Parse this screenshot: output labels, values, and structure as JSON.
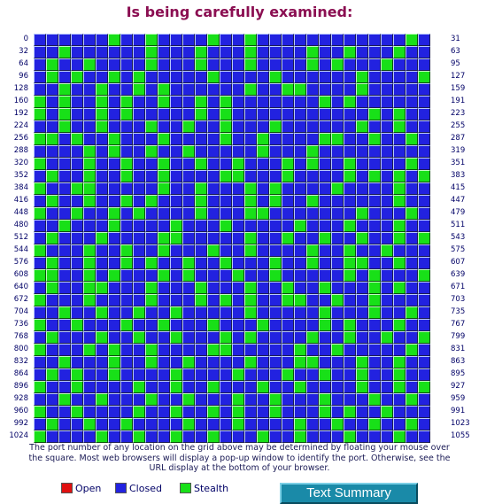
{
  "title": "Is being carefully examined:",
  "grid": {
    "columns": 32,
    "rows": 33,
    "row_labels_left": [
      "0",
      "32",
      "64",
      "96",
      "128",
      "160",
      "192",
      "224",
      "256",
      "288",
      "320",
      "352",
      "384",
      "416",
      "448",
      "480",
      "512",
      "544",
      "576",
      "608",
      "640",
      "672",
      "704",
      "736",
      "768",
      "800",
      "832",
      "864",
      "896",
      "928",
      "960",
      "992",
      "1024"
    ],
    "row_labels_right": [
      "31",
      "63",
      "95",
      "127",
      "159",
      "191",
      "223",
      "255",
      "287",
      "319",
      "351",
      "383",
      "415",
      "447",
      "479",
      "511",
      "543",
      "575",
      "607",
      "639",
      "671",
      "703",
      "735",
      "767",
      "799",
      "831",
      "863",
      "895",
      "927",
      "959",
      "991",
      "1023",
      "1055"
    ],
    "cells": [
      "CCCCCCSCCSCCCCSCCSCCCCCCCCCCCCSC",
      "CCSCCCCCCSCCCSCCCSCCCCSCCSCCCSCC",
      "CSCCSCCCCSCCCSCCCSCCCCSCSCCCSCCC",
      "CSCSCCSCSCCCCCSCCCCSCCCCCCSCCCCS",
      "CCSCCSCCSCSCCCCCCSCCSSCCCCSCCCCC",
      "SCSCCSCSCCSCCSCSCCCCCCCSCSCCCCCC",
      "SCSCCSCSCCCCCSCSCCCCCCCCCCCSCSCC",
      "CCSCCSCCCSCCSCCSCCCSCCCCCCSCCSCC",
      "SSCSCCSCCCSCCCCSCCSCCCCSSCCSCCSC",
      "CCCCSCSCCSCCSCCCCCSCCCSCCCCCCCCC",
      "SCCCSCCSCCSCCSCCSCCCSCSCCSCCCCSC",
      "CSCCSCCSCCSCCCCSSCCCSCCCCSCSCSCS",
      "SCCSSCCCCCSCCSCCCSCSCCCCSCCCCSCC",
      "CSCCSCCSCSCCCSCCCSCSCCSCCCCCCSCC",
      "SCCSCCSCSCCCCSCCCSSCCCCCCCSCCCSC",
      "CCSCCCSCCCCSCCCSCCCCCSCCCSCCCSCC",
      "CSCCCSCCCCSSCCCCCSCCSCCSCCSCCSCS",
      "SCCCSCCSCCSCCCSCCSCCCCSCCSCCSCCC",
      "CSCCSCCSCSCCSCCSCCCSCCSCCSSCCSCC",
      "SSCCSCSCCCSCSCCCSCCSCCCCCSCSCCCS",
      "CSCCSSCCCSCCCSCCCSCCSCCSCCCSCSCC",
      "SCCCSCCCCSCCCSCSCSCCSSCCSCCSCCCC",
      "CCSCCSCCSCCSCCCCCSCCCCCSCCCSCCSC",
      "SCCSCCCSCCSCCCSCCCSCCCCSCSCCCSCC",
      "CSCCCSCCSCCSCCCSCSCCCCSCCSCCSCCS",
      "SCCCSCSCCSCCCCSSCCCCCSCCSCCCCCSC",
      "CCSCCCSCCSCCSCCCCSCCCSSCCCSCCSCC",
      "CSCSCCSCCCCSCCCCSCCCSCCSCCSCCSCC",
      "SCCSCCCCSCCSCCSCCCSCCSCCCCSCCSCS",
      "CCSCCSCCCSCCSCCCSCCSCCCSCCCSCCSC",
      "SCCSCCCCSCCSCCSCSCCSCCCSCSCCSCCC",
      "CSCCSCCSCCCCSCCCSCCCCSCCSCCSCCSC",
      "SCCCCSCCSCCSCCSCCCSCCSCCCSCCCSCC"
    ]
  },
  "explanation": "The port number of any location on the grid above may be determined by floating your mouse over the square. Most web browsers will display a pop-up window to identify the port. Otherwise, see the URL display at the bottom of your browser.",
  "legend": {
    "open_label": "Open",
    "closed_label": "Closed",
    "stealth_label": "Stealth",
    "colors": {
      "open": "#e01010",
      "closed": "#2222e0",
      "stealth": "#18e018"
    }
  },
  "text_summary_label": "Text Summary"
}
